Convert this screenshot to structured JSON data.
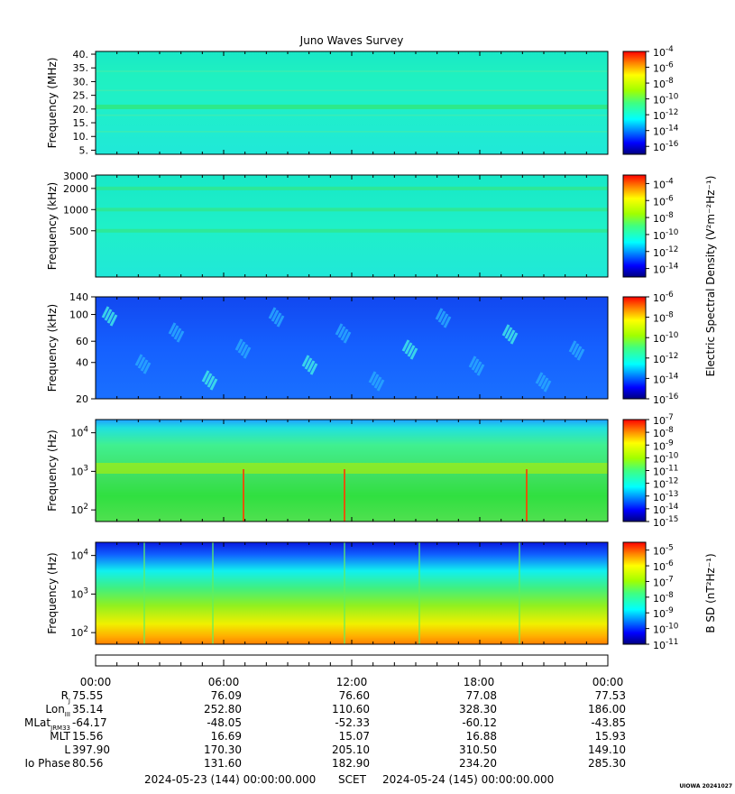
{
  "title": "Juno Waves Survey",
  "footer": {
    "start": "2024-05-23 (144) 00:00:00.000",
    "scet": "SCET",
    "end": "2024-05-24 (145) 00:00:00.000",
    "stamp": "UIOWA 20241027"
  },
  "shared_colorbar_label": "Electric Spectral Density (V²m⁻²Hz⁻¹)",
  "chart_data": [
    {
      "type": "heatmap",
      "ylabel": "Frequency (MHz)",
      "yscale": "linear",
      "ylim": [
        3.5,
        41
      ],
      "yticks": [
        {
          "v": 5,
          "label": "5."
        },
        {
          "v": 10,
          "label": "10."
        },
        {
          "v": 15,
          "label": "15."
        },
        {
          "v": 20,
          "label": "20."
        },
        {
          "v": 25,
          "label": "25."
        },
        {
          "v": 30,
          "label": "30."
        },
        {
          "v": 35,
          "label": "35."
        },
        {
          "v": 40,
          "label": "40."
        }
      ],
      "colorbar": {
        "exp_min": -17,
        "exp_max": -4,
        "labels": [
          -4,
          -6,
          -8,
          -10,
          -12,
          -14,
          -16
        ]
      },
      "background": "#1ff0c8"
    },
    {
      "type": "heatmap",
      "ylabel": "Frequency (kHz)",
      "yscale": "log",
      "ylim": [
        110,
        3100
      ],
      "yticks": [
        {
          "v": 500,
          "label": "500"
        },
        {
          "v": 1000,
          "label": "1000"
        },
        {
          "v": 2000,
          "label": "2000"
        },
        {
          "v": 3000,
          "label": "3000"
        }
      ],
      "colorbar": {
        "exp_min": -15,
        "exp_max": -3,
        "labels": [
          -4,
          -6,
          -8,
          -10,
          -12,
          -14
        ]
      },
      "background": "#1ff0c8"
    },
    {
      "type": "heatmap",
      "ylabel": "Frequency (kHz)",
      "yscale": "log",
      "ylim": [
        20,
        140
      ],
      "yticks": [
        {
          "v": 20,
          "label": "20"
        },
        {
          "v": 40,
          "label": "40"
        },
        {
          "v": 60,
          "label": "60"
        },
        {
          "v": 100,
          "label": "100"
        },
        {
          "v": 140,
          "label": "140"
        }
      ],
      "colorbar": {
        "exp_min": -16,
        "exp_max": -6,
        "labels": [
          -6,
          -8,
          -10,
          -12,
          -14,
          -16
        ]
      },
      "background": "#1560ff"
    },
    {
      "type": "heatmap",
      "ylabel": "Frequency (Hz)",
      "yscale": "log",
      "ylim": [
        50,
        22000
      ],
      "yticks": [
        {
          "v": 100,
          "label": "10^2"
        },
        {
          "v": 1000,
          "label": "10^3"
        },
        {
          "v": 10000,
          "label": "10^4"
        }
      ],
      "colorbar": {
        "exp_min": -15,
        "exp_max": -7,
        "labels": [
          -7,
          -8,
          -9,
          -10,
          -11,
          -12,
          -13,
          -14,
          -15
        ]
      },
      "background": "#40e060"
    },
    {
      "type": "heatmap",
      "ylabel": "Frequency (Hz)",
      "yscale": "log",
      "ylim": [
        50,
        22000
      ],
      "yticks": [
        {
          "v": 100,
          "label": "10^2"
        },
        {
          "v": 1000,
          "label": "10^3"
        },
        {
          "v": 10000,
          "label": "10^4"
        }
      ],
      "colorbar": {
        "exp_min": -11,
        "exp_max": -4.5,
        "labels": [
          -5,
          -6,
          -7,
          -8,
          -9,
          -10,
          -11
        ]
      },
      "colorbar_label": "B SD (nT²Hz⁻¹)",
      "background": "#50e050"
    }
  ],
  "ephemeris": {
    "time_labels": [
      "00:00",
      "06:00",
      "12:00",
      "18:00",
      "00:00"
    ],
    "rows": [
      {
        "label": "R",
        "sub": "J",
        "values": [
          "75.55",
          "76.09",
          "76.60",
          "77.08",
          "77.53"
        ]
      },
      {
        "label": "Lon",
        "sub": "III",
        "values": [
          "35.14",
          "252.80",
          "110.60",
          "328.30",
          "186.00"
        ]
      },
      {
        "label": "MLat",
        "sub": "JRM33",
        "values": [
          "-64.17",
          "-48.05",
          "-52.33",
          "-60.12",
          "-43.85"
        ]
      },
      {
        "label": "MLT",
        "sub": "",
        "values": [
          "15.56",
          "16.69",
          "15.07",
          "16.88",
          "15.93"
        ]
      },
      {
        "label": "L",
        "sub": "",
        "values": [
          "397.90",
          "170.30",
          "205.10",
          "310.50",
          "149.10"
        ]
      },
      {
        "label": "Io Phase",
        "sub": "",
        "values": [
          "80.56",
          "131.60",
          "182.90",
          "234.20",
          "285.30"
        ]
      }
    ]
  }
}
